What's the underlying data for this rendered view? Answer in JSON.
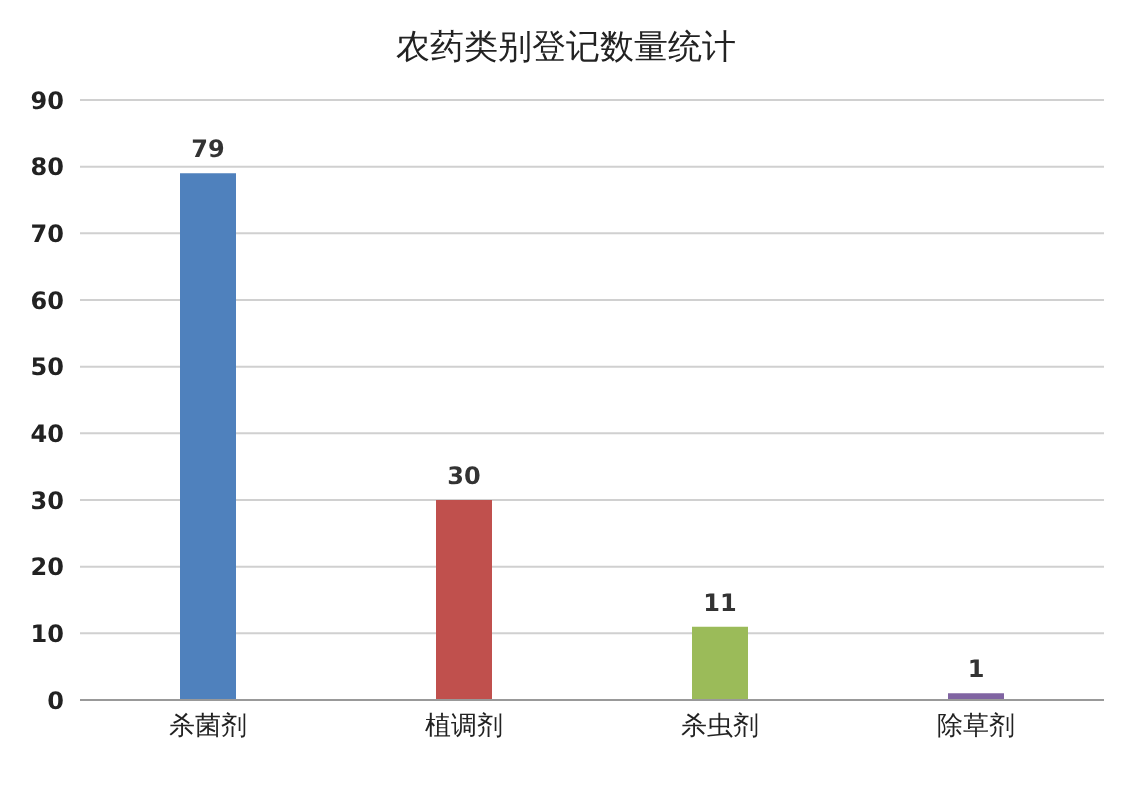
{
  "chart_data": {
    "type": "bar",
    "title": "农药类别登记数量统计",
    "categories": [
      "杀菌剂",
      "植调剂",
      "杀虫剂",
      "除草剂"
    ],
    "values": [
      79,
      30,
      11,
      1
    ],
    "colors": [
      "#4f81bd",
      "#c0504d",
      "#9bbb59",
      "#8064a2"
    ],
    "ylim": [
      0,
      90
    ],
    "yticks": [
      0,
      10,
      20,
      30,
      40,
      50,
      60,
      70,
      80,
      90
    ],
    "grid": "y",
    "data_labels": true
  }
}
